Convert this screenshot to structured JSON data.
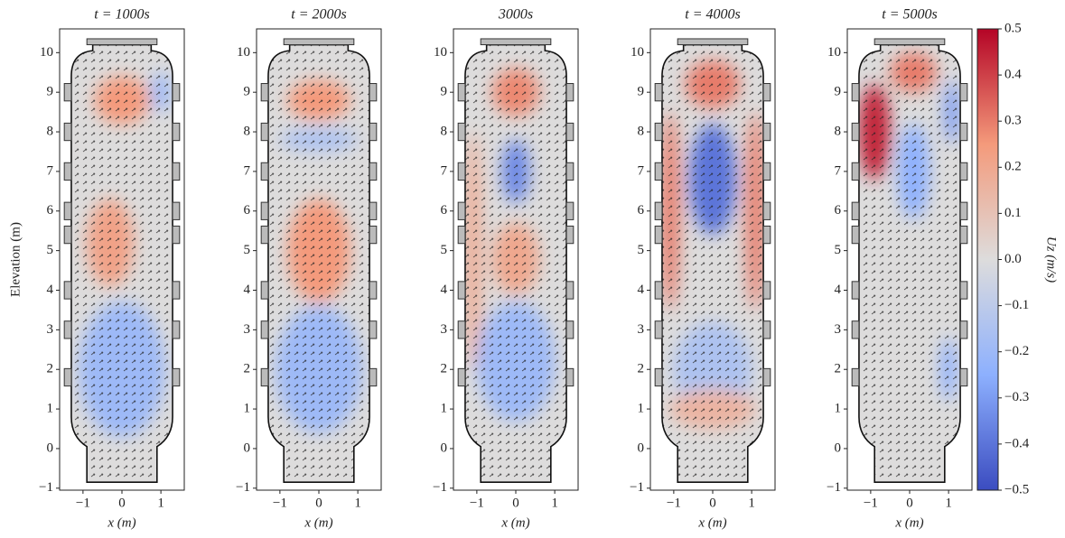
{
  "chart_data": [
    {
      "type": "heatmap",
      "title": "t = 1000s",
      "xlabel": "x (m)",
      "ylabel": "Elevation (m)",
      "xlim": [
        -1.6,
        1.6
      ],
      "ylim": [
        -1.05,
        10.6
      ],
      "xticks": [
        {
          "value": -1,
          "label": "−1"
        },
        0,
        1
      ],
      "yticks": [
        {
          "value": -1,
          "label": "−1"
        },
        0,
        1,
        2,
        3,
        4,
        5,
        6,
        7,
        8,
        9,
        10
      ],
      "regions": [
        {
          "x": 0,
          "y": 8.8,
          "rx": 0.7,
          "ry": 0.6,
          "value": 0.25
        },
        {
          "x": -0.3,
          "y": 5.2,
          "rx": 0.6,
          "ry": 1.1,
          "value": 0.22
        },
        {
          "x": 0,
          "y": 2,
          "rx": 1.1,
          "ry": 1.7,
          "value": -0.2
        },
        {
          "x": 1.0,
          "y": 9,
          "rx": 0.25,
          "ry": 0.5,
          "value": -0.2
        }
      ]
    },
    {
      "type": "heatmap",
      "title": "t = 2000s",
      "xlabel": "x (m)",
      "xlim": [
        -1.6,
        1.6
      ],
      "ylim": [
        -1.05,
        10.6
      ],
      "xticks": [
        {
          "value": -1,
          "label": "−1"
        },
        0,
        1
      ],
      "yticks": [
        {
          "value": -1,
          "label": "−1"
        },
        0,
        1,
        2,
        3,
        4,
        5,
        6,
        7,
        8,
        9,
        10
      ],
      "regions": [
        {
          "x": 0,
          "y": 8.8,
          "rx": 0.8,
          "ry": 0.5,
          "value": 0.25
        },
        {
          "x": 0,
          "y": 7.8,
          "rx": 1.0,
          "ry": 0.3,
          "value": -0.15
        },
        {
          "x": 0,
          "y": 5,
          "rx": 0.8,
          "ry": 1.3,
          "value": 0.25
        },
        {
          "x": 0,
          "y": 2,
          "rx": 1.1,
          "ry": 1.6,
          "value": -0.2
        }
      ]
    },
    {
      "type": "heatmap",
      "title": "3000s",
      "xlabel": "x (m)",
      "xlim": [
        -1.6,
        1.6
      ],
      "ylim": [
        -1.05,
        10.6
      ],
      "xticks": [
        {
          "value": -1,
          "label": "−1"
        },
        0,
        1
      ],
      "yticks": [
        {
          "value": -1,
          "label": "−1"
        },
        0,
        1,
        2,
        3,
        4,
        5,
        6,
        7,
        8,
        9,
        10
      ],
      "regions": [
        {
          "x": 0,
          "y": 9,
          "rx": 0.6,
          "ry": 0.6,
          "value": 0.28
        },
        {
          "x": 0,
          "y": 7,
          "rx": 0.35,
          "ry": 0.8,
          "value": -0.35
        },
        {
          "x": 0,
          "y": 4.8,
          "rx": 0.6,
          "ry": 0.9,
          "value": 0.2
        },
        {
          "x": 0,
          "y": 2.2,
          "rx": 1.0,
          "ry": 1.5,
          "value": -0.2
        },
        {
          "x": -1.1,
          "y": 5,
          "rx": 0.2,
          "ry": 3,
          "value": 0.2
        }
      ]
    },
    {
      "type": "heatmap",
      "title": "t = 4000s",
      "xlabel": "x (m)",
      "xlim": [
        -1.6,
        1.6
      ],
      "ylim": [
        -1.05,
        10.6
      ],
      "xticks": [
        {
          "value": -1,
          "label": "−1"
        },
        0,
        1
      ],
      "yticks": [
        {
          "value": -1,
          "label": "−1"
        },
        0,
        1,
        2,
        3,
        4,
        5,
        6,
        7,
        8,
        9,
        10
      ],
      "regions": [
        {
          "x": 0,
          "y": 9.2,
          "rx": 0.7,
          "ry": 0.6,
          "value": 0.3
        },
        {
          "x": 0,
          "y": 6.8,
          "rx": 0.6,
          "ry": 1.4,
          "value": -0.4
        },
        {
          "x": -1.1,
          "y": 6,
          "rx": 0.25,
          "ry": 2.5,
          "value": 0.3
        },
        {
          "x": 1.1,
          "y": 6,
          "rx": 0.25,
          "ry": 2.5,
          "value": 0.3
        },
        {
          "x": 0,
          "y": 2,
          "rx": 1.0,
          "ry": 1.2,
          "value": -0.15
        },
        {
          "x": 0,
          "y": 1,
          "rx": 1.1,
          "ry": 0.5,
          "value": 0.15
        }
      ]
    },
    {
      "type": "heatmap",
      "title": "t = 5000s",
      "xlabel": "x (m)",
      "xlim": [
        -1.6,
        1.6
      ],
      "ylim": [
        -1.05,
        10.6
      ],
      "xticks": [
        {
          "value": -1,
          "label": "−1"
        },
        0,
        1
      ],
      "yticks": [
        {
          "value": -1,
          "label": "−1"
        },
        0,
        1,
        2,
        3,
        4,
        5,
        6,
        7,
        8,
        9,
        10
      ],
      "regions": [
        {
          "x": -0.9,
          "y": 8,
          "rx": 0.4,
          "ry": 1.2,
          "value": 0.45
        },
        {
          "x": 0.1,
          "y": 9.5,
          "rx": 0.6,
          "ry": 0.5,
          "value": 0.3
        },
        {
          "x": 0.1,
          "y": 7,
          "rx": 0.4,
          "ry": 1.2,
          "value": -0.25
        },
        {
          "x": 1.1,
          "y": 8.5,
          "rx": 0.2,
          "ry": 0.8,
          "value": -0.3
        },
        {
          "x": 1.0,
          "y": 2,
          "rx": 0.2,
          "ry": 0.8,
          "value": -0.25
        }
      ]
    },
    {
      "type": "colorbar",
      "label": "Uz (m/s)",
      "lim": [
        -0.5,
        0.5
      ],
      "colors": [
        "#3b4cc0",
        "#8db0fe",
        "#dddcdc",
        "#f49a7b",
        "#b40426"
      ],
      "ticks": [
        {
          "value": -0.5,
          "label": "−0.5"
        },
        {
          "value": -0.4,
          "label": "−0.4"
        },
        {
          "value": -0.3,
          "label": "−0.3"
        },
        {
          "value": -0.2,
          "label": "−0.2"
        },
        {
          "value": -0.1,
          "label": "−0.1"
        },
        {
          "value": 0,
          "label": "0.0"
        },
        0.1,
        0.2,
        0.3,
        0.4,
        0.5
      ]
    }
  ]
}
